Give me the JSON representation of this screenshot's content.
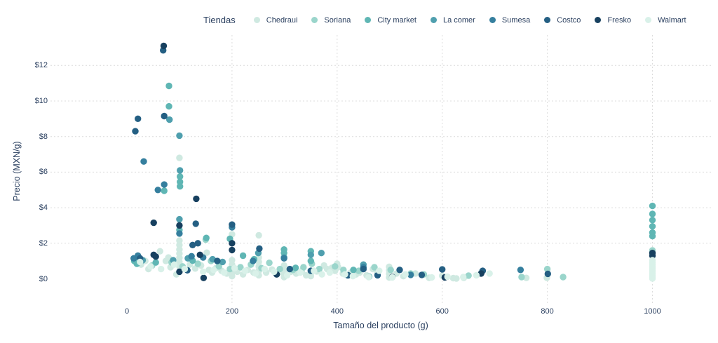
{
  "colors": {
    "text": "#2a3f5f",
    "grid": "#dcdcdc",
    "background": "#ffffff"
  },
  "chart_data": {
    "type": "scatter",
    "title": "",
    "legend_title": "Tiendas",
    "legend_position": "top",
    "xlabel": "Tamaño del producto (g)",
    "ylabel": "Precio (MXN/g)",
    "x_axis": {
      "title": "Tamaño del producto (g)",
      "tick_labels": [
        "0",
        "200",
        "400",
        "600",
        "800",
        "1000"
      ],
      "tick_values": [
        0,
        200,
        400,
        600,
        800,
        1000
      ],
      "grid_values": [
        200,
        400,
        600,
        800,
        1000
      ]
    },
    "y_axis": {
      "title": "Precio (MXN/g)",
      "tick_labels": [
        "$0",
        "$2",
        "$4",
        "$6",
        "$8",
        "$10",
        "$12"
      ],
      "tick_values": [
        0,
        2,
        4,
        6,
        8,
        10,
        12
      ],
      "grid_values": [
        2,
        4,
        6,
        8,
        10,
        12
      ]
    },
    "xlim": [
      -145,
      1112
    ],
    "ylim": [
      -1.4,
      13.7
    ],
    "grid": "dashed",
    "series": [
      {
        "name": "Chedraui",
        "color": "#cfe9e1",
        "points": [
          [
            100,
            6.8
          ],
          [
            63,
            1.55
          ],
          [
            35,
            1.0
          ],
          [
            27,
            0.8
          ],
          [
            41,
            0.55
          ],
          [
            74,
            1.0
          ],
          [
            83,
            0.65
          ],
          [
            94,
            0.25
          ],
          [
            79,
            1.2
          ],
          [
            100,
            2.15
          ],
          [
            100,
            1.9
          ],
          [
            100,
            1.65
          ],
          [
            100,
            1.42
          ],
          [
            100,
            1.18
          ],
          [
            100,
            0.95
          ],
          [
            100,
            0.7
          ],
          [
            120,
            0.8
          ],
          [
            130,
            0.58
          ],
          [
            141,
            0.75
          ],
          [
            152,
            1.47
          ],
          [
            156,
            0.5
          ],
          [
            162,
            0.35
          ],
          [
            170,
            0.62
          ],
          [
            180,
            0.45
          ],
          [
            190,
            0.3
          ],
          [
            200,
            2.5
          ],
          [
            200,
            1.05
          ],
          [
            200,
            0.8
          ],
          [
            200,
            0.55
          ],
          [
            200,
            0.32
          ],
          [
            200,
            0.15
          ],
          [
            210,
            0.4
          ],
          [
            221,
            0.25
          ],
          [
            230,
            0.5
          ],
          [
            241,
            0.35
          ],
          [
            251,
            2.45
          ],
          [
            251,
            1.2
          ],
          [
            251,
            0.95
          ],
          [
            251,
            0.7
          ],
          [
            251,
            0.45
          ],
          [
            251,
            0.2
          ],
          [
            265,
            0.35
          ],
          [
            276,
            0.52
          ],
          [
            287,
            0.3
          ],
          [
            299,
            0.75
          ],
          [
            299,
            0.5
          ],
          [
            299,
            0.28
          ],
          [
            299,
            0.1
          ],
          [
            312,
            0.4
          ],
          [
            322,
            0.3
          ],
          [
            333,
            0.45
          ],
          [
            341,
            0.2
          ],
          [
            350,
            0.3
          ],
          [
            350,
            0.15
          ],
          [
            361,
            0.42
          ],
          [
            375,
            0.75
          ],
          [
            381,
            0.55
          ],
          [
            390,
            0.62
          ],
          [
            396,
            0.45
          ],
          [
            400,
            0.85
          ],
          [
            402,
            0.65
          ],
          [
            411,
            0.3
          ],
          [
            426,
            0.35
          ],
          [
            436,
            0.25
          ],
          [
            443,
            0.35
          ],
          [
            456,
            0.2
          ],
          [
            468,
            0.55
          ],
          [
            476,
            0.3
          ],
          [
            499,
            0.68
          ],
          [
            499,
            0.48
          ],
          [
            499,
            0.28
          ],
          [
            499,
            0.08
          ],
          [
            513,
            0.3
          ],
          [
            526,
            0.15
          ],
          [
            549,
            0.3
          ],
          [
            575,
            0.06
          ],
          [
            600,
            0.17
          ],
          [
            621,
            0.04
          ],
          [
            627,
            0.02
          ],
          [
            641,
            0.06
          ],
          [
            675,
            0.38
          ],
          [
            760,
            0.05
          ],
          [
            799,
            0.06
          ]
        ]
      },
      {
        "name": "Soriana",
        "color": "#9ad5cb",
        "points": [
          [
            150,
            2.2
          ],
          [
            18,
            0.9
          ],
          [
            48,
            0.75
          ],
          [
            85,
            0.92
          ],
          [
            106,
            0.7
          ],
          [
            135,
            0.85
          ],
          [
            160,
            1.0
          ],
          [
            175,
            0.7
          ],
          [
            196,
            0.55
          ],
          [
            216,
            0.65
          ],
          [
            236,
            0.8
          ],
          [
            256,
            0.6
          ],
          [
            271,
            0.9
          ],
          [
            291,
            0.55
          ],
          [
            316,
            0.5
          ],
          [
            336,
            0.65
          ],
          [
            352,
            0.85
          ],
          [
            366,
            0.55
          ],
          [
            396,
            0.7
          ],
          [
            412,
            0.5
          ],
          [
            441,
            0.45
          ],
          [
            471,
            0.65
          ],
          [
            502,
            0.5
          ],
          [
            540,
            0.3
          ],
          [
            565,
            0.25
          ],
          [
            650,
            0.18
          ],
          [
            751,
            0.1
          ],
          [
            800,
            0.55
          ],
          [
            830,
            0.1
          ],
          [
            1000,
            1.6
          ]
        ]
      },
      {
        "name": "City market",
        "color": "#5fb6b4",
        "points": [
          [
            80,
            10.85
          ],
          [
            80,
            9.7
          ],
          [
            101,
            5.75
          ],
          [
            101,
            5.45
          ],
          [
            101,
            5.2
          ],
          [
            71,
            4.95
          ],
          [
            19,
            0.85
          ],
          [
            14,
            1.0
          ],
          [
            100,
            2.75
          ],
          [
            151,
            2.3
          ],
          [
            196,
            2.25
          ],
          [
            299,
            1.65
          ],
          [
            299,
            1.45
          ],
          [
            350,
            1.55
          ],
          [
            350,
            1.0
          ],
          [
            55,
            0.92
          ],
          [
            125,
            1.02
          ],
          [
            221,
            1.3
          ],
          [
            242,
            1.1
          ],
          [
            321,
            0.62
          ],
          [
            431,
            0.5
          ],
          [
            461,
            0.12
          ],
          [
            1000,
            4.1
          ],
          [
            1000,
            3.65
          ],
          [
            1000,
            3.3
          ],
          [
            1000,
            2.95
          ],
          [
            1000,
            2.6
          ],
          [
            1000,
            2.4
          ]
        ]
      },
      {
        "name": "La comer",
        "color": "#4f9fae",
        "points": [
          [
            81,
            8.95
          ],
          [
            100,
            8.05
          ],
          [
            101,
            6.1
          ],
          [
            100,
            3.35
          ],
          [
            88,
            1.05
          ],
          [
            163,
            1.1
          ],
          [
            30,
            1.05
          ],
          [
            116,
            1.15
          ],
          [
            250,
            1.45
          ],
          [
            350,
            1.35
          ],
          [
            450,
            0.8
          ],
          [
            182,
            0.95
          ],
          [
            370,
            1.45
          ],
          [
            299,
            1.2
          ]
        ]
      },
      {
        "name": "Sumesa",
        "color": "#357f9e",
        "points": [
          [
            32,
            6.6
          ],
          [
            71,
            5.3
          ],
          [
            59,
            5.0
          ],
          [
            100,
            2.55
          ],
          [
            200,
            2.9
          ],
          [
            21,
            1.3
          ],
          [
            13,
            1.15
          ],
          [
            145,
            1.2
          ],
          [
            240,
            1.0
          ],
          [
            299,
            1.15
          ],
          [
            420,
            0.2
          ],
          [
            450,
            0.65
          ],
          [
            540,
            0.22
          ],
          [
            749,
            0.5
          ],
          [
            123,
            1.27
          ]
        ]
      },
      {
        "name": "Costco",
        "color": "#245f83",
        "points": [
          [
            21,
            9.0
          ],
          [
            16,
            8.3
          ],
          [
            71,
            9.15
          ],
          [
            69,
            12.85
          ],
          [
            131,
            3.1
          ],
          [
            200,
            3.05
          ],
          [
            25,
            1.15
          ],
          [
            172,
            1.0
          ],
          [
            115,
            0.48
          ],
          [
            125,
            1.9
          ],
          [
            252,
            1.7
          ],
          [
            310,
            0.55
          ],
          [
            421,
            0.2
          ],
          [
            477,
            0.2
          ],
          [
            519,
            0.5
          ],
          [
            561,
            0.22
          ],
          [
            600,
            0.53
          ],
          [
            677,
            0.45
          ],
          [
            801,
            0.28
          ],
          [
            350,
            0.45
          ],
          [
            450,
            0.55
          ],
          [
            135,
            2.0
          ]
        ]
      },
      {
        "name": "Fresko",
        "color": "#17405f",
        "points": [
          [
            70,
            13.1
          ],
          [
            51,
            3.15
          ],
          [
            100,
            3.0
          ],
          [
            132,
            4.5
          ],
          [
            51,
            1.35
          ],
          [
            55,
            1.25
          ],
          [
            100,
            0.4
          ],
          [
            139,
            1.35
          ],
          [
            146,
            0.05
          ],
          [
            200,
            2.0
          ],
          [
            200,
            1.62
          ],
          [
            1000,
            1.45
          ],
          [
            1000,
            1.3
          ],
          [
            285,
            0.25
          ],
          [
            505,
            0.1
          ],
          [
            605,
            0.08
          ],
          [
            674,
            0.3
          ]
        ]
      },
      {
        "name": "Walmart",
        "color": "#d9f1e9",
        "points": [
          [
            1000,
            1.05
          ],
          [
            1000,
            0.92
          ],
          [
            1000,
            0.8
          ],
          [
            1000,
            0.68
          ],
          [
            1000,
            0.56
          ],
          [
            1000,
            0.44
          ],
          [
            1000,
            0.32
          ],
          [
            1000,
            0.2
          ],
          [
            1000,
            0.1
          ],
          [
            1000,
            0.02
          ],
          [
            25,
            0.95
          ],
          [
            45,
            0.7
          ],
          [
            65,
            0.55
          ],
          [
            90,
            0.8
          ],
          [
            110,
            0.55
          ],
          [
            145,
            0.4
          ],
          [
            165,
            0.5
          ],
          [
            185,
            0.35
          ],
          [
            205,
            0.6
          ],
          [
            225,
            0.45
          ],
          [
            245,
            0.3
          ],
          [
            262,
            0.55
          ],
          [
            280,
            0.4
          ],
          [
            305,
            0.2
          ],
          [
            330,
            0.35
          ],
          [
            356,
            0.45
          ],
          [
            371,
            0.25
          ],
          [
            386,
            0.35
          ],
          [
            415,
            0.25
          ],
          [
            430,
            0.15
          ],
          [
            460,
            0.1
          ],
          [
            480,
            0.45
          ],
          [
            505,
            0.08
          ],
          [
            530,
            0.25
          ],
          [
            580,
            0.08
          ],
          [
            610,
            0.12
          ],
          [
            640,
            0.1
          ],
          [
            665,
            0.2
          ],
          [
            690,
            0.3
          ]
        ]
      }
    ]
  }
}
